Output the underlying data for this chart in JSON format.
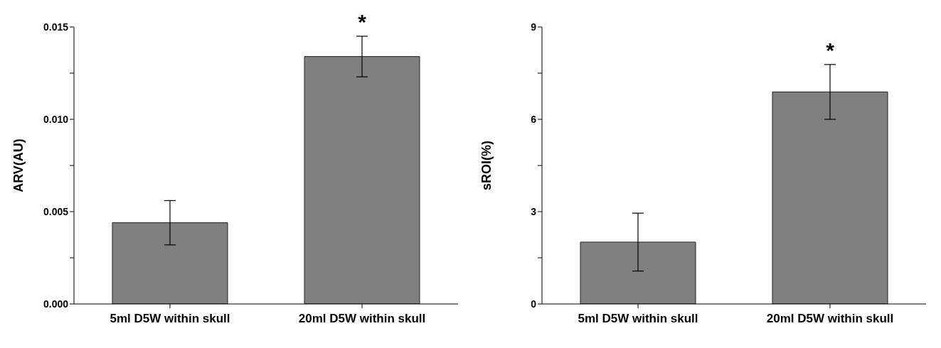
{
  "chart_data": [
    {
      "type": "bar",
      "ylabel": "ARV(AU)",
      "categories": [
        "5ml D5W within skull",
        "20ml D5W within skull"
      ],
      "series": [
        {
          "color": "#808080",
          "values": [
            0.0044,
            0.0134
          ],
          "errors": [
            0.0012,
            0.0011
          ]
        }
      ],
      "ylim": [
        0,
        0.015
      ],
      "yticks": [
        {
          "value": 0,
          "label": "0.000"
        },
        {
          "value": 0.0025,
          "label": null
        },
        {
          "value": 0.005,
          "label": "0.005"
        },
        {
          "value": 0.0075,
          "label": null
        },
        {
          "value": 0.01,
          "label": "0.010"
        },
        {
          "value": 0.0125,
          "label": null
        },
        {
          "value": 0.015,
          "label": "0.015"
        }
      ],
      "annotations": [
        {
          "text": "*",
          "x": "20ml D5W within skull",
          "y": 0.0145
        }
      ],
      "grid": false,
      "legend": false
    },
    {
      "type": "bar",
      "ylabel": "sROI(%)",
      "categories": [
        "5ml D5W within skull",
        "20ml D5W within skull"
      ],
      "series": [
        {
          "color": "#808080",
          "values": [
            2.01,
            6.89
          ],
          "errors": [
            0.94,
            0.89
          ]
        }
      ],
      "ylim": [
        0,
        9
      ],
      "yticks": [
        0,
        {
          "value": 1.5,
          "label": null
        },
        3,
        {
          "value": 4.5,
          "label": null
        },
        6,
        {
          "value": 7.5,
          "label": null
        },
        9
      ],
      "annotations": [
        {
          "text": "*",
          "x": "20ml D5W within skull",
          "y": 7.78
        }
      ],
      "grid": false,
      "legend": false
    }
  ]
}
